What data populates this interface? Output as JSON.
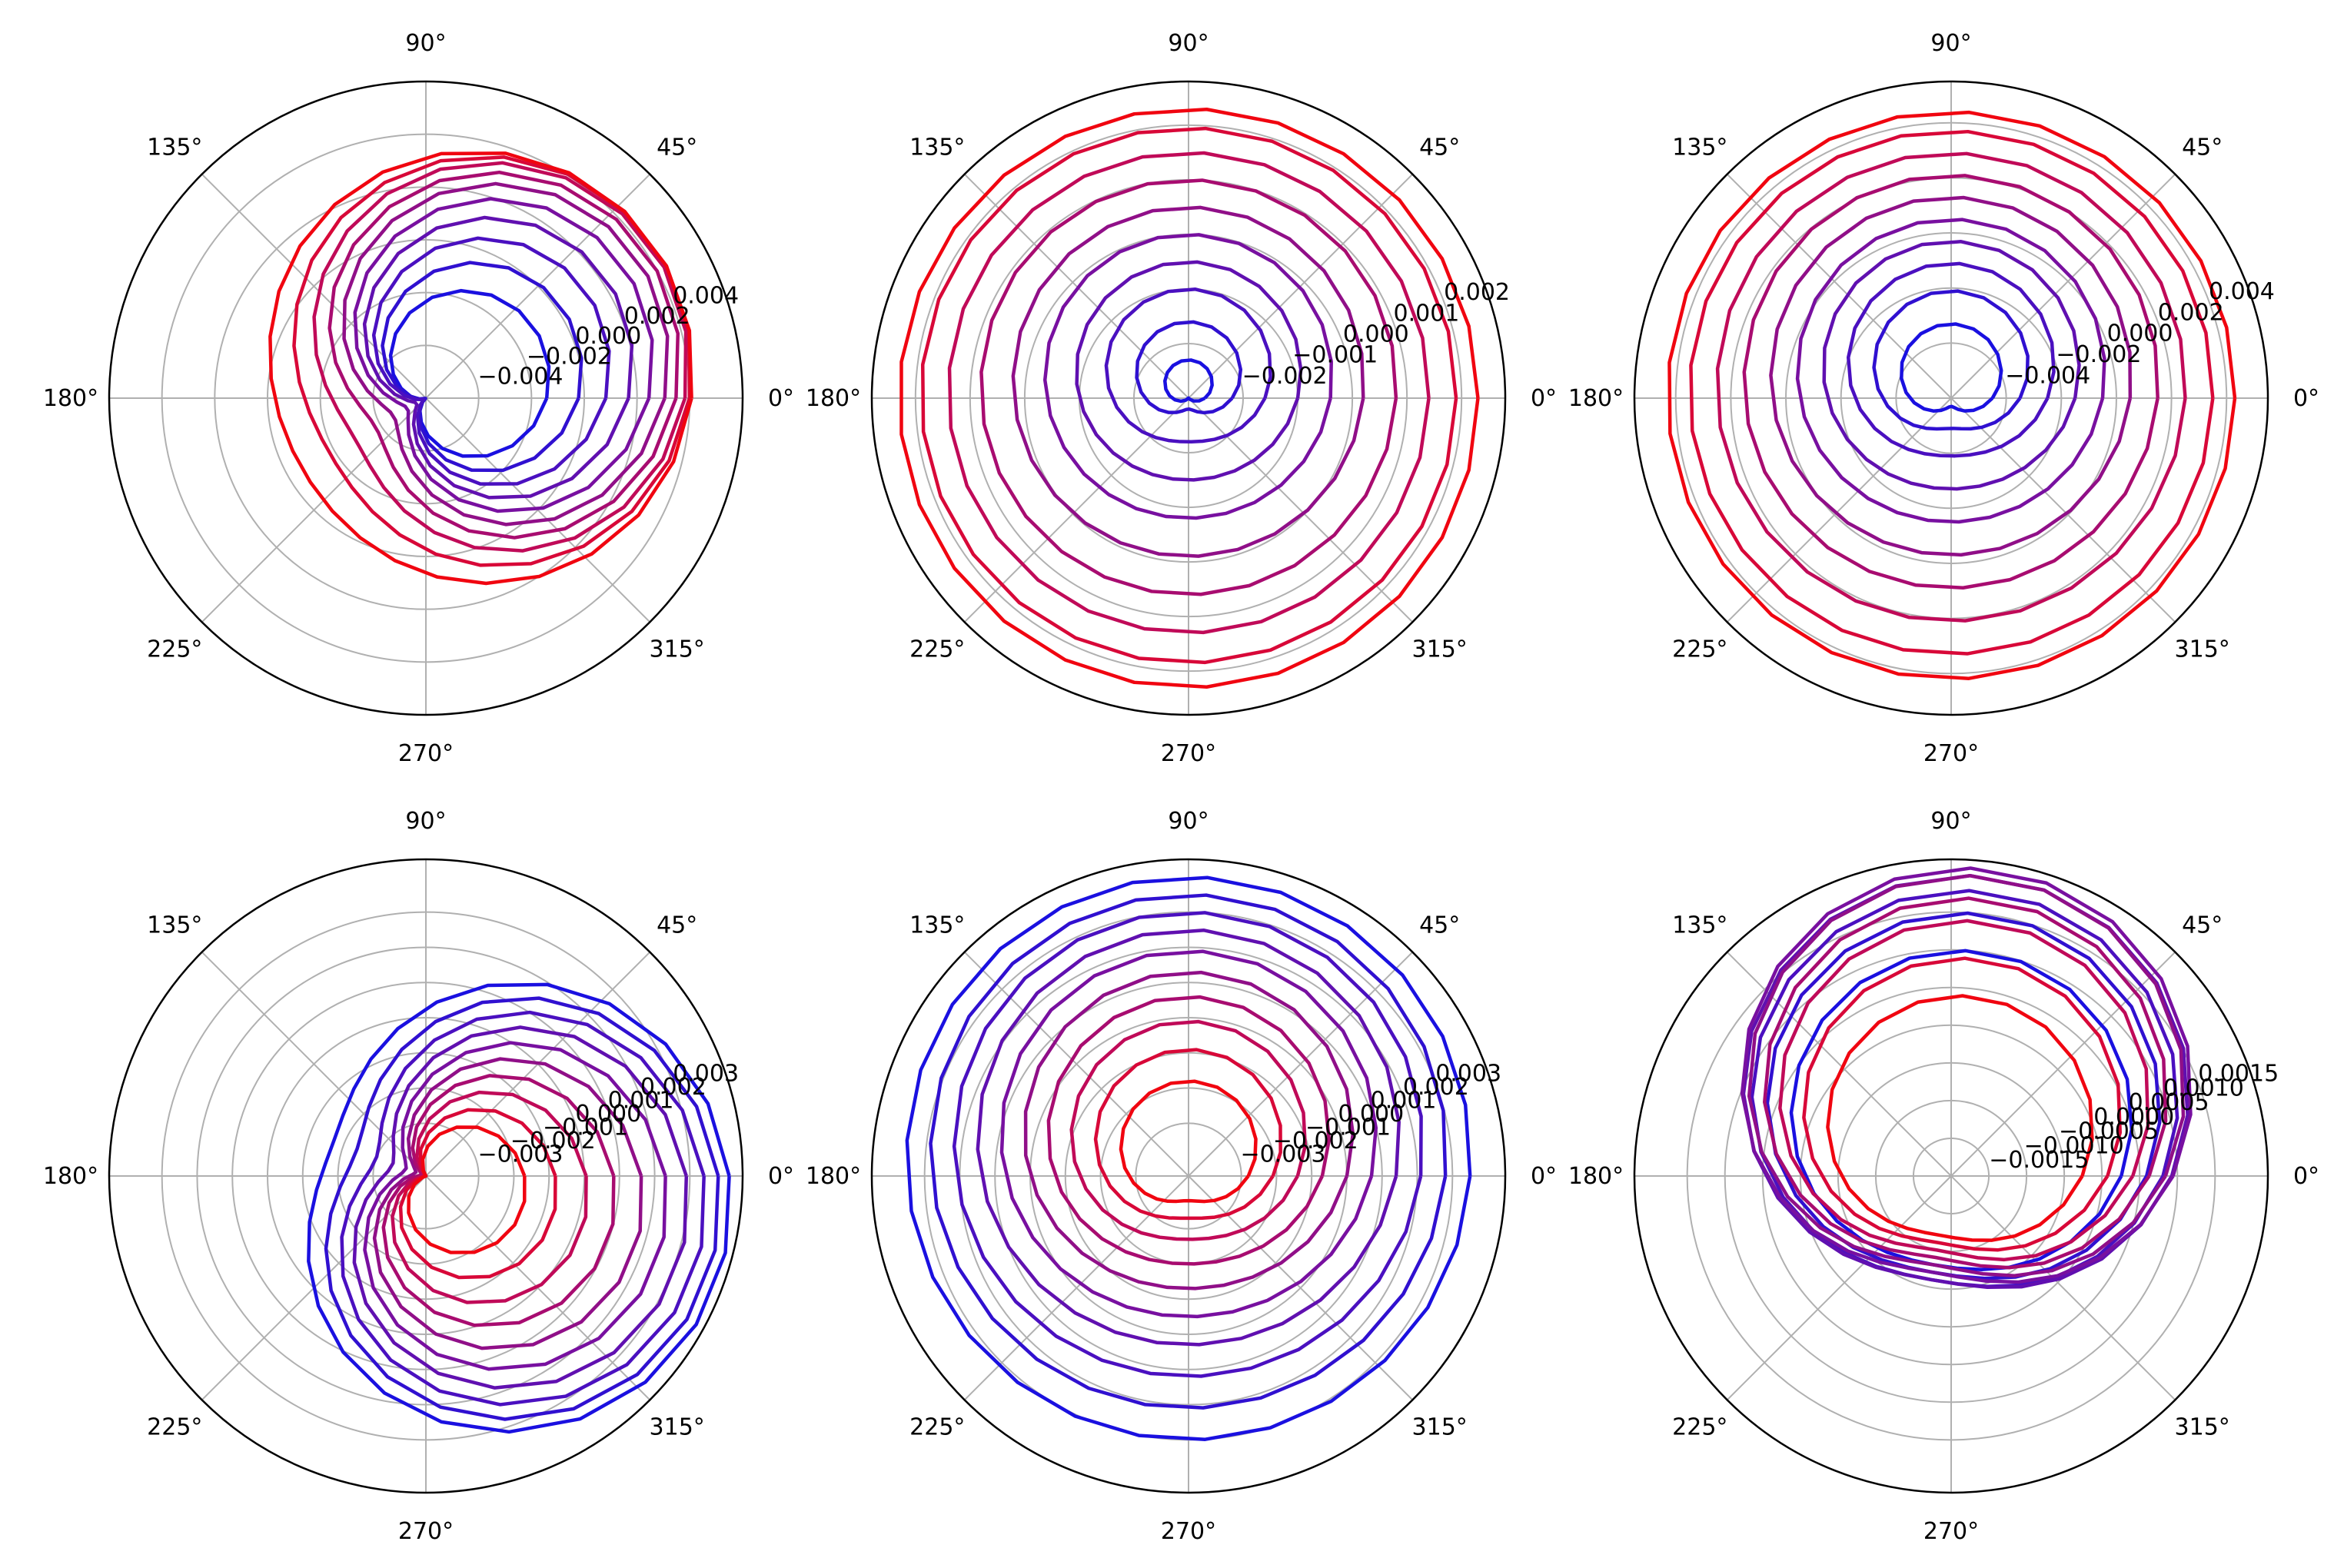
{
  "figure": {
    "panel_count": 6,
    "layout": "2x3 grid",
    "line_color_scheme": "blue-to-red gradient"
  },
  "chart_data": [
    {
      "type": "line",
      "projection": "polar",
      "angle_ticks_deg": [
        0,
        45,
        90,
        135,
        180,
        225,
        270,
        315
      ],
      "angle_tick_labels": [
        "0°",
        "45°",
        "90°",
        "135°",
        "180°",
        "225°",
        "270°",
        "315°"
      ],
      "rlim": [
        -0.006,
        0.006
      ],
      "radial_ticks": [
        -0.004,
        -0.002,
        0.0,
        0.002,
        0.004
      ],
      "radial_tick_labels": [
        "−0.004",
        "−0.002",
        "0.000",
        "0.002",
        "0.004"
      ],
      "grid": true,
      "offset_angle_deg": 30,
      "color_start": "#0000ff",
      "color_end": "#ff0000",
      "series": [
        {
          "center_r": -0.0035,
          "amplitude": 0.0024,
          "color": "#1a10e0"
        },
        {
          "center_r": -0.0029,
          "amplitude": 0.0031,
          "color": "#3010d0"
        },
        {
          "center_r": -0.0023,
          "amplitude": 0.0036,
          "color": "#4a10c0"
        },
        {
          "center_r": -0.0017,
          "amplitude": 0.0039,
          "color": "#6010b0"
        },
        {
          "center_r": -0.0011,
          "amplitude": 0.0041,
          "color": "#7810a0"
        },
        {
          "center_r": -0.0005,
          "amplitude": 0.0041,
          "color": "#900f88"
        },
        {
          "center_r": 0.0001,
          "amplitude": 0.0039,
          "color": "#a80c70"
        },
        {
          "center_r": 0.0007,
          "amplitude": 0.0036,
          "color": "#c00a58"
        },
        {
          "center_r": 0.0013,
          "amplitude": 0.0031,
          "color": "#d80838"
        },
        {
          "center_r": 0.0019,
          "amplitude": 0.0025,
          "color": "#f00510"
        }
      ]
    },
    {
      "type": "line",
      "projection": "polar",
      "angle_ticks_deg": [
        0,
        45,
        90,
        135,
        180,
        225,
        270,
        315
      ],
      "angle_tick_labels": [
        "0°",
        "45°",
        "90°",
        "135°",
        "180°",
        "225°",
        "270°",
        "315°"
      ],
      "rlim": [
        -0.003,
        0.0028
      ],
      "radial_ticks": [
        -0.002,
        -0.001,
        0.0,
        0.001,
        0.002
      ],
      "radial_tick_labels": [
        "−0.002",
        "−0.001",
        "0.000",
        "0.001",
        "0.002"
      ],
      "grid": true,
      "offset_angle_deg": 90,
      "series": [
        {
          "center_r": -0.0027,
          "amplitude": 0.0004,
          "color": "#1a10e0"
        },
        {
          "center_r": -0.0022,
          "amplitude": 0.0006,
          "color": "#3010d0"
        },
        {
          "center_r": -0.0016,
          "amplitude": 0.0006,
          "color": "#4a10c0"
        },
        {
          "center_r": -0.001,
          "amplitude": 0.0005,
          "color": "#6010b0"
        },
        {
          "center_r": -0.0004,
          "amplitude": 0.0004,
          "color": "#7810a0"
        },
        {
          "center_r": 0.0002,
          "amplitude": 0.0003,
          "color": "#900f88"
        },
        {
          "center_r": 0.0008,
          "amplitude": 0.0002,
          "color": "#a80c70"
        },
        {
          "center_r": 0.0014,
          "amplitude": 0.0001,
          "color": "#c00a58"
        },
        {
          "center_r": 0.0019,
          "amplitude": 5e-05,
          "color": "#d80838"
        },
        {
          "center_r": 0.0023,
          "amplitude": 0.0,
          "color": "#f00510"
        }
      ]
    },
    {
      "type": "line",
      "projection": "polar",
      "angle_ticks_deg": [
        0,
        45,
        90,
        135,
        180,
        225,
        270,
        315
      ],
      "angle_tick_labels": [
        "0°",
        "45°",
        "90°",
        "135°",
        "180°",
        "225°",
        "270°",
        "315°"
      ],
      "rlim": [
        -0.006,
        0.0055
      ],
      "radial_ticks": [
        -0.004,
        -0.002,
        0.0,
        0.002,
        0.004
      ],
      "radial_tick_labels": [
        "−0.004",
        "−0.002",
        "0.000",
        "0.002",
        "0.004"
      ],
      "grid": true,
      "offset_angle_deg": 90,
      "series": [
        {
          "center_r": -0.0045,
          "amplitude": 0.0012,
          "color": "#1a10e0"
        },
        {
          "center_r": -0.0035,
          "amplitude": 0.0014,
          "color": "#3010d0"
        },
        {
          "center_r": -0.0025,
          "amplitude": 0.0014,
          "color": "#4a10c0"
        },
        {
          "center_r": -0.0015,
          "amplitude": 0.0012,
          "color": "#6010b0"
        },
        {
          "center_r": -0.0005,
          "amplitude": 0.001,
          "color": "#7810a0"
        },
        {
          "center_r": 0.0005,
          "amplitude": 0.0008,
          "color": "#900f88"
        },
        {
          "center_r": 0.0015,
          "amplitude": 0.0006,
          "color": "#a80c70"
        },
        {
          "center_r": 0.0025,
          "amplitude": 0.0004,
          "color": "#c00a58"
        },
        {
          "center_r": 0.0035,
          "amplitude": 0.0002,
          "color": "#d80838"
        },
        {
          "center_r": 0.0043,
          "amplitude": 0.0001,
          "color": "#f00510"
        }
      ]
    },
    {
      "type": "line",
      "projection": "polar",
      "angle_ticks_deg": [
        0,
        45,
        90,
        135,
        180,
        225,
        270,
        315
      ],
      "angle_tick_labels": [
        "0°",
        "45°",
        "90°",
        "135°",
        "180°",
        "225°",
        "270°",
        "315°"
      ],
      "rlim": [
        -0.0045,
        0.0045
      ],
      "radial_ticks": [
        -0.003,
        -0.002,
        -0.001,
        0.0,
        0.001,
        0.002,
        0.003
      ],
      "radial_tick_labels": [
        "−0.003",
        "−0.002",
        "−0.001",
        "0.000",
        "0.001",
        "0.002",
        "0.003"
      ],
      "grid": true,
      "offset_angle_deg": -20,
      "series": [
        {
          "center_r": 0.0013,
          "amplitude": 0.003,
          "color": "#1a10e0"
        },
        {
          "center_r": 0.0008,
          "amplitude": 0.0032,
          "color": "#3010d0"
        },
        {
          "center_r": 0.0003,
          "amplitude": 0.0033,
          "color": "#4a10c0"
        },
        {
          "center_r": -0.0002,
          "amplitude": 0.0033,
          "color": "#6010b0"
        },
        {
          "center_r": -0.0007,
          "amplitude": 0.0032,
          "color": "#7810a0"
        },
        {
          "center_r": -0.0012,
          "amplitude": 0.003,
          "color": "#900f88"
        },
        {
          "center_r": -0.0017,
          "amplitude": 0.0027,
          "color": "#a80c70"
        },
        {
          "center_r": -0.0022,
          "amplitude": 0.0024,
          "color": "#c00a58"
        },
        {
          "center_r": -0.0027,
          "amplitude": 0.002,
          "color": "#d80838"
        },
        {
          "center_r": -0.0032,
          "amplitude": 0.0016,
          "color": "#f00510"
        }
      ]
    },
    {
      "type": "line",
      "projection": "polar",
      "angle_ticks_deg": [
        0,
        45,
        90,
        135,
        180,
        225,
        270,
        315
      ],
      "angle_tick_labels": [
        "0°",
        "45°",
        "90°",
        "135°",
        "180°",
        "225°",
        "270°",
        "315°"
      ],
      "rlim": [
        -0.0045,
        0.0045
      ],
      "radial_ticks": [
        -0.003,
        -0.002,
        -0.001,
        0.0,
        0.001,
        0.002,
        0.003
      ],
      "radial_tick_labels": [
        "−0.003",
        "−0.002",
        "−0.001",
        "0.000",
        "0.001",
        "0.002",
        "0.003"
      ],
      "grid": true,
      "offset_angle_deg": 90,
      "series": [
        {
          "center_r": 0.0035,
          "amplitude": 0.0005,
          "color": "#1a10e0"
        },
        {
          "center_r": 0.0028,
          "amplitude": 0.0007,
          "color": "#3010d0"
        },
        {
          "center_r": 0.0021,
          "amplitude": 0.0009,
          "color": "#4a10c0"
        },
        {
          "center_r": 0.0014,
          "amplitude": 0.0011,
          "color": "#6010b0"
        },
        {
          "center_r": 0.0007,
          "amplitude": 0.0012,
          "color": "#7810a0"
        },
        {
          "center_r": 0.0,
          "amplitude": 0.0013,
          "color": "#900f88"
        },
        {
          "center_r": -0.0007,
          "amplitude": 0.0013,
          "color": "#a80c70"
        },
        {
          "center_r": -0.0014,
          "amplitude": 0.0013,
          "color": "#c00a58"
        },
        {
          "center_r": -0.0021,
          "amplitude": 0.0012,
          "color": "#d80838"
        },
        {
          "center_r": -0.0028,
          "amplitude": 0.001,
          "color": "#f00510"
        }
      ]
    },
    {
      "type": "line",
      "projection": "polar",
      "angle_ticks_deg": [
        0,
        45,
        90,
        135,
        180,
        225,
        270,
        315
      ],
      "angle_tick_labels": [
        "0°",
        "45°",
        "90°",
        "135°",
        "180°",
        "225°",
        "270°",
        "315°"
      ],
      "rlim": [
        -0.002,
        0.0022
      ],
      "radial_ticks": [
        -0.0015,
        -0.001,
        -0.0005,
        0.0,
        0.0005,
        0.001,
        0.0015
      ],
      "radial_tick_labels": [
        "−0.0015",
        "−0.0010",
        "−0.0005",
        "0.0000",
        "0.0005",
        "0.0010",
        "0.0015"
      ],
      "grid": true,
      "offset_angle_deg": 80,
      "series": [
        {
          "center_r": 0.0001,
          "amplitude": 0.0009,
          "color": "#1a10e0"
        },
        {
          "center_r": 0.0004,
          "amplitude": 0.0011,
          "color": "#3010d0"
        },
        {
          "center_r": 0.0006,
          "amplitude": 0.0012,
          "color": "#4a10c0"
        },
        {
          "center_r": 0.0007,
          "amplitude": 0.0013,
          "color": "#6010b0"
        },
        {
          "center_r": 0.0007,
          "amplitude": 0.0014,
          "color": "#7810a0"
        },
        {
          "center_r": 0.0006,
          "amplitude": 0.0014,
          "color": "#900f88"
        },
        {
          "center_r": 0.0004,
          "amplitude": 0.0013,
          "color": "#a80c70"
        },
        {
          "center_r": 0.0002,
          "amplitude": 0.0012,
          "color": "#c00a58"
        },
        {
          "center_r": -0.0001,
          "amplitude": 0.001,
          "color": "#d80838"
        },
        {
          "center_r": -0.0004,
          "amplitude": 0.0008,
          "color": "#f00510"
        }
      ]
    }
  ]
}
